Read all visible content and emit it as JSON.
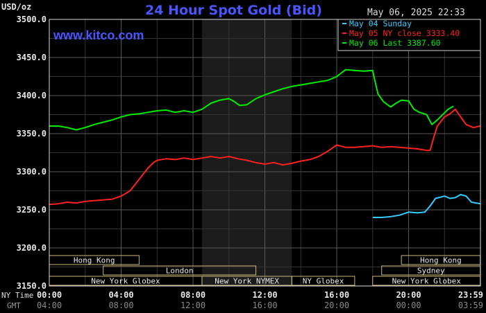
{
  "chart_data": {
    "type": "line",
    "title": "24 Hour Spot Gold (Bid)",
    "brand": "www.kitco.com",
    "date_label": "May 06, 2025 22:33",
    "ylabel": "USD/oz",
    "ylim": [
      3150,
      3500
    ],
    "y_ticks": [
      "3500.0",
      "3450.0",
      "3400.0",
      "3350.0",
      "3300.0",
      "3250.0",
      "3200.0",
      "3150.0"
    ],
    "grid": true,
    "legend_position": "top-right",
    "x_row_labels": {
      "ny_time": "NY Time",
      "gmt": "GMT"
    },
    "x_ticks_ny": [
      "00:00",
      "04:00",
      "08:00",
      "12:00",
      "16:00",
      "20:00",
      "23:59"
    ],
    "x_ticks_gmt": [
      "04:00",
      "08:00",
      "12:00",
      "16:00",
      "20:00",
      "00:00",
      "03:59"
    ],
    "shaded_session_hours": [
      8.5,
      13.5
    ],
    "series": [
      {
        "name": "May 04 Sunday",
        "color": "#33ccff",
        "x_hours": [
          18.0,
          18.5,
          19.0,
          19.5,
          20.0,
          20.5,
          20.9,
          21.2,
          21.5,
          22.0,
          22.3,
          22.6,
          22.9,
          23.2,
          23.5,
          23.99
        ],
        "values": [
          3240,
          3240,
          3241,
          3243,
          3247,
          3246,
          3247,
          3255,
          3265,
          3268,
          3265,
          3266,
          3270,
          3268,
          3260,
          3258
        ]
      },
      {
        "name": "May 05 NY close 3333.40",
        "color": "#ff2020",
        "x_hours": [
          0.0,
          0.5,
          1.0,
          1.5,
          2.0,
          2.5,
          3.0,
          3.5,
          4.0,
          4.5,
          5.0,
          5.5,
          5.8,
          6.0,
          6.5,
          7.0,
          7.5,
          8.0,
          8.5,
          9.0,
          9.5,
          10.0,
          10.5,
          11.0,
          11.5,
          12.0,
          12.5,
          13.0,
          13.5,
          14.0,
          14.5,
          15.0,
          15.5,
          16.0,
          16.5,
          17.0,
          17.5,
          18.0,
          18.5,
          19.0,
          19.5,
          20.0,
          20.5,
          21.0,
          21.2,
          21.4,
          21.6,
          22.0,
          22.3,
          22.6,
          22.9,
          23.2,
          23.6,
          23.99
        ],
        "values": [
          3257,
          3258,
          3260,
          3259,
          3261,
          3262,
          3263,
          3264,
          3268,
          3275,
          3290,
          3305,
          3312,
          3315,
          3317,
          3316,
          3318,
          3316,
          3318,
          3320,
          3318,
          3320,
          3317,
          3315,
          3312,
          3310,
          3312,
          3309,
          3311,
          3314,
          3316,
          3320,
          3327,
          3335,
          3332,
          3332,
          3333,
          3334,
          3332,
          3333,
          3332,
          3331,
          3330,
          3328,
          3328,
          3345,
          3360,
          3372,
          3376,
          3382,
          3372,
          3362,
          3358,
          3360
        ]
      },
      {
        "name": "May 06 Last 3387.60",
        "color": "#00ee00",
        "x_hours": [
          0.0,
          0.5,
          1.0,
          1.5,
          2.0,
          2.5,
          3.0,
          3.5,
          4.0,
          4.5,
          5.0,
          5.5,
          6.0,
          6.5,
          7.0,
          7.5,
          8.0,
          8.5,
          9.0,
          9.5,
          10.0,
          10.3,
          10.6,
          11.0,
          11.5,
          12.0,
          12.5,
          13.0,
          13.5,
          14.0,
          14.5,
          15.0,
          15.5,
          16.0,
          16.5,
          17.0,
          17.5,
          18.0,
          18.1,
          18.3,
          18.6,
          19.0,
          19.3,
          19.6,
          20.0,
          20.3,
          20.6,
          21.0,
          21.3,
          21.6,
          21.9,
          22.2,
          22.5
        ],
        "values": [
          3360,
          3360,
          3358,
          3355,
          3358,
          3362,
          3365,
          3368,
          3372,
          3375,
          3376,
          3378,
          3380,
          3381,
          3378,
          3380,
          3378,
          3382,
          3390,
          3394,
          3396,
          3392,
          3387,
          3388,
          3396,
          3401,
          3405,
          3409,
          3412,
          3414,
          3416,
          3418,
          3420,
          3425,
          3434,
          3433,
          3432,
          3433,
          3422,
          3402,
          3392,
          3385,
          3390,
          3394,
          3393,
          3382,
          3378,
          3375,
          3362,
          3368,
          3375,
          3382,
          3386
        ]
      }
    ],
    "market_sessions": [
      {
        "label": "Hong Kong",
        "row": 0,
        "start": 0.0,
        "end": 5.0
      },
      {
        "label": "Hong Kong",
        "row": 0,
        "start": 19.6,
        "end": 23.99
      },
      {
        "label": "London",
        "row": 1,
        "start": 3.0,
        "end": 11.5
      },
      {
        "label": "Sydney",
        "row": 1,
        "start": 18.5,
        "end": 23.99
      },
      {
        "label": "New York Globex",
        "row": 2,
        "start": 0.0,
        "end": 8.5
      },
      {
        "label": "New York NYMEX",
        "row": 2,
        "start": 8.5,
        "end": 13.5
      },
      {
        "label": "NY Globex",
        "row": 2,
        "start": 13.5,
        "end": 17.0
      },
      {
        "label": "New York Globex",
        "row": 2,
        "start": 18.0,
        "end": 23.99
      }
    ]
  }
}
